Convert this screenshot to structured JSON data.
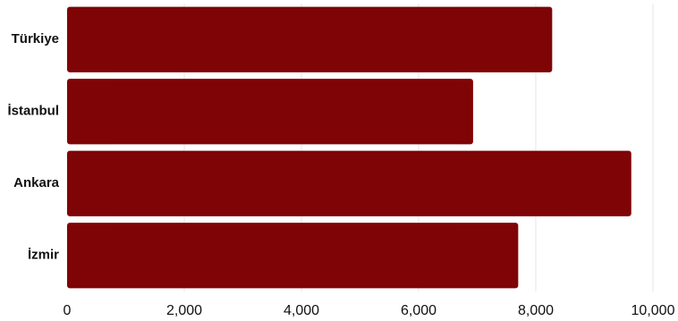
{
  "chart_data": {
    "type": "bar",
    "orientation": "horizontal",
    "title": "",
    "xlabel": "",
    "ylabel": "",
    "categories": [
      "Türkiye",
      "İstanbul",
      "Ankara",
      "İzmir"
    ],
    "values": [
      8280,
      6930,
      9630,
      7700
    ],
    "xlim": [
      0,
      10000
    ],
    "xticks": [
      0,
      2000,
      4000,
      6000,
      8000,
      10000
    ],
    "xtick_labels": [
      "0",
      "2,000",
      "4,000",
      "6,000",
      "8,000",
      "10,000"
    ],
    "grid": "vertical",
    "legend": "none",
    "bar_color": "#7f0406",
    "grid_color": "#e6e6e6"
  }
}
